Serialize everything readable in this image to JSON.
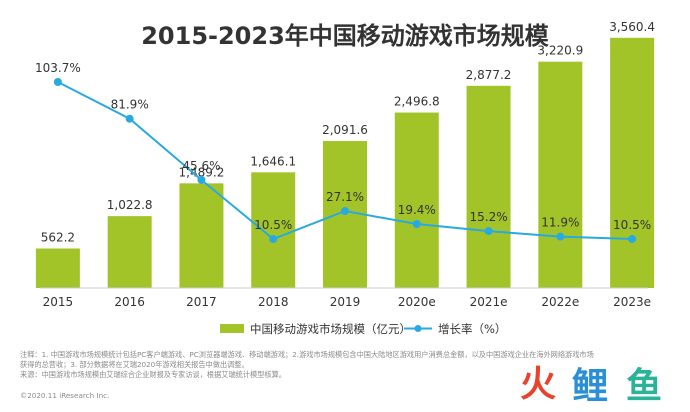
{
  "chart_data": {
    "type": "bar",
    "title": "2015-2023年中国移动游戏市场规模",
    "categories": [
      "2015",
      "2016",
      "2017",
      "2018",
      "2019",
      "2020e",
      "2021e",
      "2022e",
      "2023e"
    ],
    "series": [
      {
        "name": "中国移动游戏市场规模（亿元）",
        "type": "bar",
        "values": [
          562.2,
          1022.8,
          1489.2,
          1646.1,
          2091.6,
          2496.8,
          2877.2,
          3220.9,
          3560.4
        ],
        "labels": [
          "562.2",
          "1,022.8",
          "1,489.2",
          "1,646.1",
          "2,091.6",
          "2,496.8",
          "2,877.2",
          "3,220.9",
          "3,560.4"
        ],
        "color": "#a3c428"
      },
      {
        "name": "增长率（%）",
        "type": "line",
        "values": [
          103.7,
          81.9,
          45.6,
          10.5,
          27.1,
          19.4,
          15.2,
          11.9,
          10.5
        ],
        "labels": [
          "103.7%",
          "81.9%",
          "45.6%",
          "10.5%",
          "27.1%",
          "19.4%",
          "15.2%",
          "11.9%",
          "10.5%"
        ],
        "color": "#29a9e1"
      }
    ],
    "ylim_bar": [
      0,
      3700
    ],
    "ylim_rate": [
      -20,
      110
    ],
    "grid": false,
    "legend_position": "bottom"
  },
  "notes": {
    "line1": "注释：1. 中国游戏市场规模统计包括PC客户端游戏、PC浏览器端游戏、移动端游戏；2.游戏市场规模包含中国大陆地区游戏用户消费总金额，以及中国游戏企业在海外网络游戏市场",
    "line2": "获得的总营收；3. 部分数据将在艾瑞2020年游戏相关报告中做出调整。",
    "line3": "来源：中国游戏市场规模由艾瑞综合企业财报及专家访谈，根据艾瑞统计模型核算。"
  },
  "source": "©2020.11 iResearch Inc.",
  "watermark": {
    "chars": [
      "火",
      "鲤",
      "鱼"
    ],
    "colors": [
      "#e8432b",
      "#2b8fd6",
      "#2bb39a"
    ]
  }
}
